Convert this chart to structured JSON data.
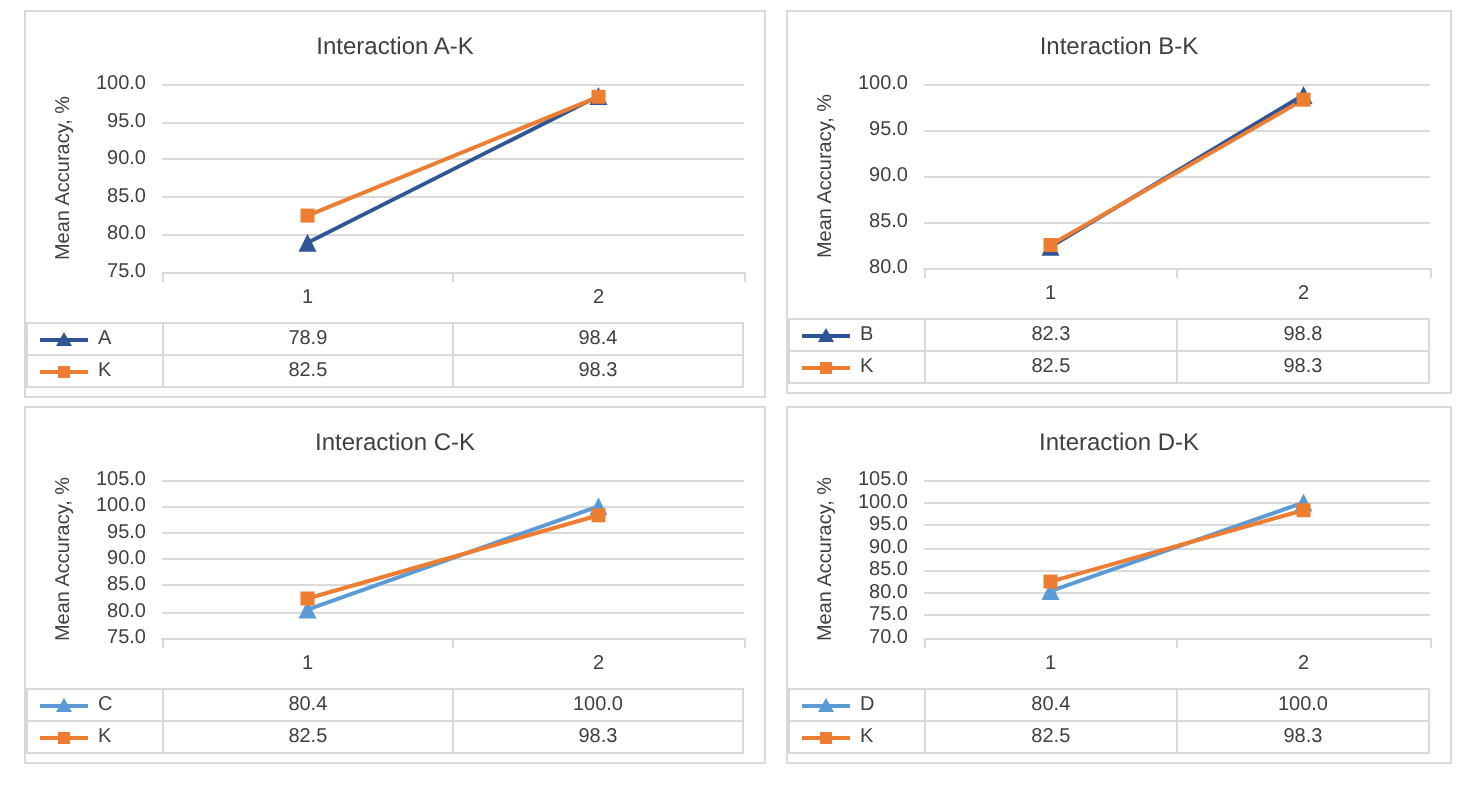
{
  "chart_data": [
    {
      "type": "line",
      "title": "Interaction A-K",
      "ylabel": "Mean Accuracy, %",
      "categories": [
        "1",
        "2"
      ],
      "series": [
        {
          "name": "A",
          "color": "#2f5597",
          "marker": "triangle",
          "values": [
            78.9,
            98.4
          ],
          "value_labels": [
            "78.9",
            "98.4"
          ]
        },
        {
          "name": "K",
          "color": "#ed7d31",
          "marker": "square",
          "values": [
            82.5,
            98.3
          ],
          "value_labels": [
            "82.5",
            "98.3"
          ]
        }
      ],
      "ylim": [
        75,
        100
      ],
      "yticks": [
        {
          "value": 75,
          "label": "75.0"
        },
        {
          "value": 80,
          "label": "80.0"
        },
        {
          "value": 85,
          "label": "85.0"
        },
        {
          "value": 90,
          "label": "90.0"
        },
        {
          "value": 95,
          "label": "95.0"
        },
        {
          "value": 100,
          "label": "100.0"
        }
      ],
      "grid": "y",
      "legend": "bottom"
    },
    {
      "type": "line",
      "title": "Interaction B-K",
      "ylabel": "Mean Accuracy, %",
      "categories": [
        "1",
        "2"
      ],
      "series": [
        {
          "name": "B",
          "color": "#2f5597",
          "marker": "triangle",
          "values": [
            82.3,
            98.8
          ],
          "value_labels": [
            "82.3",
            "98.8"
          ]
        },
        {
          "name": "K",
          "color": "#ed7d31",
          "marker": "square",
          "values": [
            82.5,
            98.3
          ],
          "value_labels": [
            "82.5",
            "98.3"
          ]
        }
      ],
      "ylim": [
        80,
        100
      ],
      "yticks": [
        {
          "value": 80,
          "label": "80.0"
        },
        {
          "value": 85,
          "label": "85.0"
        },
        {
          "value": 90,
          "label": "90.0"
        },
        {
          "value": 95,
          "label": "95.0"
        },
        {
          "value": 100,
          "label": "100.0"
        }
      ],
      "grid": "y",
      "legend": "bottom"
    },
    {
      "type": "line",
      "title": "Interaction C-K",
      "ylabel": "Mean Accuracy, %",
      "categories": [
        "1",
        "2"
      ],
      "series": [
        {
          "name": "C",
          "color": "#5b9bd5",
          "marker": "triangle",
          "values": [
            80.4,
            100.0
          ],
          "value_labels": [
            "80.4",
            "100.0"
          ]
        },
        {
          "name": "K",
          "color": "#ed7d31",
          "marker": "square",
          "values": [
            82.5,
            98.3
          ],
          "value_labels": [
            "82.5",
            "98.3"
          ]
        }
      ],
      "ylim": [
        75,
        105
      ],
      "yticks": [
        {
          "value": 75,
          "label": "75.0"
        },
        {
          "value": 80,
          "label": "80.0"
        },
        {
          "value": 85,
          "label": "85.0"
        },
        {
          "value": 90,
          "label": "90.0"
        },
        {
          "value": 95,
          "label": "95.0"
        },
        {
          "value": 100,
          "label": "100.0"
        },
        {
          "value": 105,
          "label": "105.0"
        }
      ],
      "grid": "y",
      "legend": "bottom"
    },
    {
      "type": "line",
      "title": "Interaction D-K",
      "ylabel": "Mean Accuracy, %",
      "categories": [
        "1",
        "2"
      ],
      "series": [
        {
          "name": "D",
          "color": "#5b9bd5",
          "marker": "triangle",
          "values": [
            80.4,
            100.0
          ],
          "value_labels": [
            "80.4",
            "100.0"
          ]
        },
        {
          "name": "K",
          "color": "#ed7d31",
          "marker": "square",
          "values": [
            82.5,
            98.3
          ],
          "value_labels": [
            "82.5",
            "98.3"
          ]
        }
      ],
      "ylim": [
        70,
        105
      ],
      "yticks": [
        {
          "value": 70,
          "label": "70.0"
        },
        {
          "value": 75,
          "label": "75.0"
        },
        {
          "value": 80,
          "label": "80.0"
        },
        {
          "value": 85,
          "label": "85.0"
        },
        {
          "value": 90,
          "label": "90.0"
        },
        {
          "value": 95,
          "label": "95.0"
        },
        {
          "value": 100,
          "label": "100.0"
        },
        {
          "value": 105,
          "label": "105.0"
        }
      ],
      "grid": "y",
      "legend": "bottom"
    }
  ]
}
